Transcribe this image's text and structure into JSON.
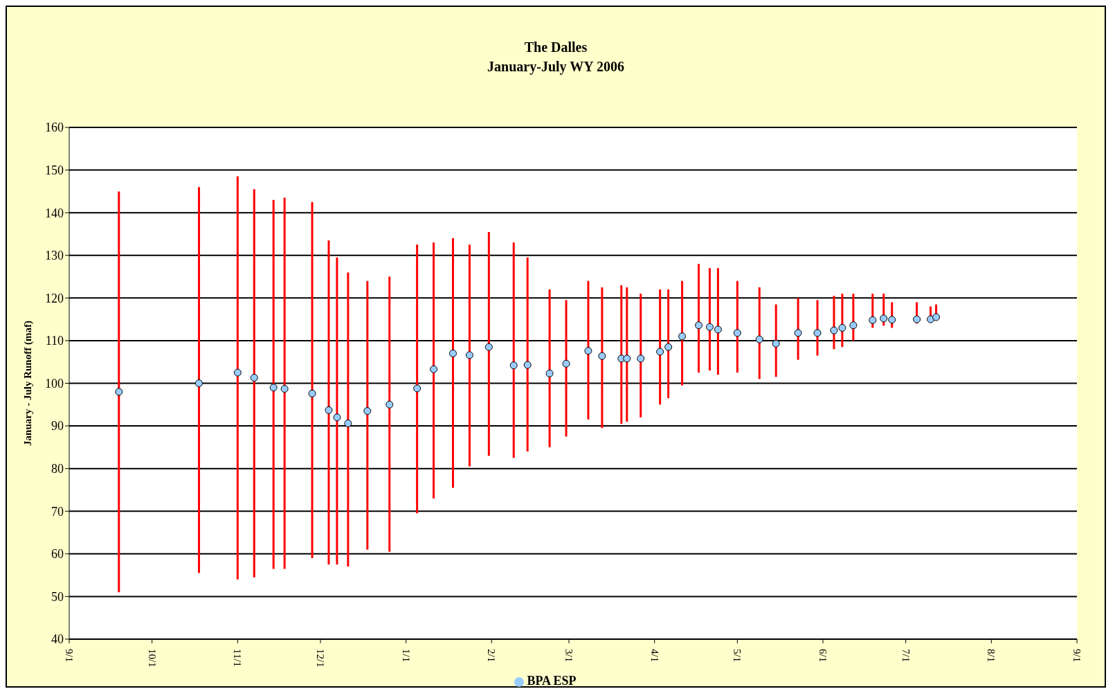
{
  "chart_data": {
    "type": "scatter",
    "title": "The Dalles",
    "subtitle": "January-July WY 2006",
    "ylabel": "January - July Runoff (maf)",
    "x": [
      "2005-09-19",
      "2005-10-18",
      "2005-11-01",
      "2005-11-07",
      "2005-11-14",
      "2005-11-18",
      "2005-11-28",
      "2005-12-04",
      "2005-12-07",
      "2005-12-11",
      "2005-12-18",
      "2005-12-26",
      "2006-01-05",
      "2006-01-11",
      "2006-01-18",
      "2006-01-24",
      "2006-01-31",
      "2006-02-09",
      "2006-02-14",
      "2006-02-22",
      "2006-02-28",
      "2006-03-08",
      "2006-03-13",
      "2006-03-20",
      "2006-03-22",
      "2006-03-27",
      "2006-04-03",
      "2006-04-06",
      "2006-04-11",
      "2006-04-17",
      "2006-04-21",
      "2006-04-24",
      "2006-05-01",
      "2006-05-09",
      "2006-05-15",
      "2006-05-23",
      "2006-05-30",
      "2006-06-05",
      "2006-06-08",
      "2006-06-12",
      "2006-06-19",
      "2006-06-23",
      "2006-06-26",
      "2006-07-05",
      "2006-07-10",
      "2006-07-12"
    ],
    "series": [
      {
        "name": "BPA ESP",
        "color": "#99ccff",
        "values": [
          98,
          100,
          102.5,
          101.3,
          99,
          98.7,
          97.6,
          93.7,
          92,
          90.6,
          93.5,
          95,
          98.8,
          103.3,
          107,
          106.6,
          108.5,
          104.2,
          104.3,
          102.3,
          104.6,
          107.6,
          106.4,
          105.8,
          105.8,
          105.8,
          107.4,
          108.5,
          111,
          113.6,
          113.2,
          112.6,
          111.8,
          110.3,
          109.3,
          111.8,
          111.8,
          112.4,
          113,
          113.6,
          114.8,
          115.2,
          114.9,
          115,
          115,
          115.5
        ],
        "errors": [
          [
            51,
            145
          ],
          [
            55.5,
            146
          ],
          [
            54,
            148.5
          ],
          [
            54.5,
            145.5
          ],
          [
            56.5,
            143
          ],
          [
            56.5,
            143.5
          ],
          [
            59,
            142.5
          ],
          [
            57.5,
            133.5
          ],
          [
            57.5,
            129.5
          ],
          [
            57,
            126
          ],
          [
            61,
            124
          ],
          [
            60.5,
            125
          ],
          [
            69.5,
            132.5
          ],
          [
            73,
            133
          ],
          [
            75.5,
            134
          ],
          [
            80.5,
            132.5
          ],
          [
            83,
            135.5
          ],
          [
            82.5,
            133
          ],
          [
            84,
            129.5
          ],
          [
            85,
            122
          ],
          [
            87.5,
            119.5
          ],
          [
            91.5,
            124
          ],
          [
            89.5,
            122.5
          ],
          [
            90.5,
            123
          ],
          [
            91,
            122.5
          ],
          [
            92,
            121
          ],
          [
            95,
            122
          ],
          [
            96.5,
            122
          ],
          [
            99.5,
            124
          ],
          [
            102.5,
            128
          ],
          [
            103,
            127
          ],
          [
            102,
            127
          ],
          [
            102.5,
            124
          ],
          [
            101,
            122.5
          ],
          [
            101.5,
            118.5
          ],
          [
            105.5,
            120
          ],
          [
            106.5,
            119.5
          ],
          [
            108,
            120.5
          ],
          [
            108.5,
            121
          ],
          [
            110,
            121
          ],
          [
            113,
            121
          ],
          [
            113.5,
            121
          ],
          [
            113,
            119
          ],
          [
            114,
            119
          ],
          [
            114.5,
            118
          ],
          [
            115,
            118.5
          ]
        ]
      }
    ],
    "xlim": [
      "2005-09-01",
      "2006-09-01"
    ],
    "xticks": [
      {
        "value": "2005-09-01",
        "label": "9/1"
      },
      {
        "value": "2005-10-01",
        "label": "10/1"
      },
      {
        "value": "2005-11-01",
        "label": "11/1"
      },
      {
        "value": "2005-12-01",
        "label": "12/1"
      },
      {
        "value": "2006-01-01",
        "label": "1/1"
      },
      {
        "value": "2006-02-01",
        "label": "2/1"
      },
      {
        "value": "2006-03-01",
        "label": "3/1"
      },
      {
        "value": "2006-04-01",
        "label": "4/1"
      },
      {
        "value": "2006-05-01",
        "label": "5/1"
      },
      {
        "value": "2006-06-01",
        "label": "6/1"
      },
      {
        "value": "2006-07-01",
        "label": "7/1"
      },
      {
        "value": "2006-08-01",
        "label": "8/1"
      },
      {
        "value": "2006-09-01",
        "label": "9/1"
      }
    ],
    "ylim": [
      40,
      160
    ],
    "yticks": [
      40,
      50,
      60,
      70,
      80,
      90,
      100,
      110,
      120,
      130,
      140,
      150,
      160
    ],
    "grid": "y",
    "legend": "bottom",
    "marker": "circle"
  }
}
